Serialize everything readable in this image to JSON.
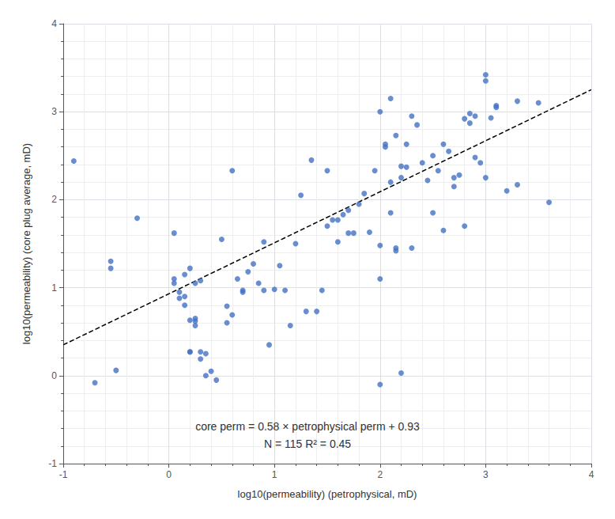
{
  "chart_data": {
    "type": "scatter",
    "xlabel": "log10(permeability) (petrophysical, mD)",
    "ylabel": "log10(permeability) (core plug average, mD)",
    "annotations": [
      "core perm = 0.58 × petrophysical perm + 0.93",
      "N = 115 R² = 0.45"
    ],
    "xlim": [
      -1,
      4
    ],
    "ylim": [
      -1,
      4
    ],
    "xticks": [
      -1,
      0,
      1,
      2,
      3,
      4
    ],
    "yticks": [
      -1,
      0,
      1,
      2,
      3,
      4
    ],
    "grid": true,
    "series": [
      {
        "type": "scatter",
        "color": "#4472C4",
        "marker": "circle",
        "x": [
          -0.9,
          -0.55,
          -0.55,
          -0.7,
          -0.5,
          -0.3,
          0.05,
          0.05,
          0.1,
          0.15,
          0.15,
          0.2,
          0.2,
          0.2,
          0.25,
          0.25,
          0.25,
          0.3,
          0.3,
          0.35,
          0.35,
          0.4,
          0.45,
          0.5,
          0.55,
          0.6,
          0.65,
          0.7,
          0.8,
          0.85,
          0.9,
          0.9,
          0.95,
          1.0,
          1.05,
          1.1,
          1.15,
          1.2,
          1.25,
          1.3,
          1.35,
          1.4,
          1.45,
          1.5,
          1.55,
          1.6,
          1.65,
          1.7,
          1.75,
          1.8,
          1.85,
          1.9,
          1.95,
          2.0,
          2.0,
          2.0,
          2.05,
          2.05,
          2.1,
          2.1,
          2.15,
          2.15,
          2.2,
          2.2,
          2.25,
          2.25,
          2.3,
          2.3,
          2.35,
          2.4,
          2.45,
          2.5,
          2.55,
          2.6,
          2.65,
          2.7,
          2.75,
          2.8,
          2.85,
          2.9,
          2.95,
          3.0,
          3.0,
          3.05,
          3.1,
          3.2,
          3.3,
          3.5,
          3.6,
          0.05,
          0.1,
          0.15,
          0.2,
          0.25,
          0.3,
          0.55,
          0.6,
          0.7,
          0.75,
          1.5,
          1.6,
          1.7,
          2.0,
          2.1,
          2.15,
          2.2,
          2.5,
          2.6,
          2.7,
          2.8,
          2.85,
          2.9,
          3.0,
          3.1,
          3.3
        ],
        "values": [
          2.44,
          1.3,
          1.22,
          -0.08,
          0.06,
          1.79,
          1.1,
          1.05,
          0.95,
          1.15,
          0.9,
          1.22,
          0.27,
          0.27,
          1.05,
          0.62,
          0.65,
          0.27,
          0.19,
          0.25,
          0.0,
          0.05,
          -0.05,
          1.55,
          0.6,
          2.33,
          1.1,
          0.97,
          1.27,
          1.05,
          0.97,
          1.52,
          0.35,
          0.98,
          1.25,
          0.97,
          0.57,
          1.5,
          2.05,
          0.73,
          2.45,
          0.73,
          0.97,
          2.33,
          1.77,
          1.77,
          1.83,
          1.88,
          1.62,
          1.95,
          2.07,
          1.63,
          2.33,
          -0.1,
          3.0,
          1.1,
          2.6,
          2.63,
          2.2,
          3.15,
          1.45,
          1.42,
          2.25,
          0.03,
          2.37,
          2.63,
          1.45,
          2.95,
          2.85,
          2.42,
          2.22,
          2.5,
          2.33,
          2.63,
          2.55,
          2.25,
          2.28,
          2.92,
          2.98,
          2.95,
          2.42,
          2.25,
          3.42,
          2.93,
          3.07,
          2.1,
          3.12,
          3.1,
          1.97,
          1.62,
          0.88,
          0.8,
          0.63,
          0.57,
          1.08,
          0.79,
          0.69,
          0.95,
          1.18,
          1.7,
          1.52,
          1.62,
          1.48,
          1.85,
          2.73,
          2.38,
          1.85,
          1.65,
          2.15,
          1.7,
          2.87,
          2.48,
          3.35,
          3.05,
          2.17
        ]
      },
      {
        "type": "line",
        "color": "#000000",
        "line_style": "dashed",
        "x": [
          -1,
          4
        ],
        "values": [
          0.35,
          3.25
        ]
      }
    ]
  }
}
